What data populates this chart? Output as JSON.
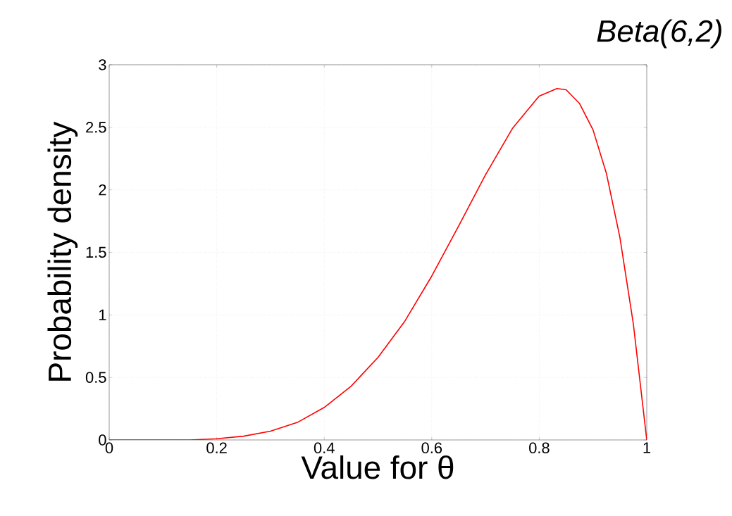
{
  "chart_data": {
    "type": "line",
    "title": "*Beta(6,2)*",
    "xlabel": "Value for θ",
    "ylabel": "Probability density",
    "x": [
      0,
      0.05,
      0.1,
      0.15,
      0.2,
      0.25,
      0.3,
      0.35,
      0.4,
      0.45,
      0.5,
      0.55,
      0.6,
      0.65,
      0.7,
      0.75,
      0.8,
      0.833,
      0.85,
      0.875,
      0.9,
      0.925,
      0.95,
      0.975,
      1
    ],
    "series": [
      {
        "color": "#ff0000",
        "values": [
          0,
          0,
          0,
          0,
          0.01,
          0.03,
          0.07,
          0.14,
          0.26,
          0.43,
          0.66,
          0.95,
          1.31,
          1.71,
          2.12,
          2.49,
          2.75,
          2.81,
          2.8,
          2.69,
          2.48,
          2.13,
          1.62,
          0.93,
          0
        ]
      }
    ],
    "xlim": [
      0,
      1
    ],
    "ylim": [
      0,
      3
    ],
    "xticks": [
      0,
      0.2,
      0.4,
      0.6,
      0.8,
      1
    ],
    "yticks": [
      0,
      0.5,
      1,
      1.5,
      2,
      2.5,
      3
    ],
    "grid": true,
    "marker": "none",
    "line_style": "solid"
  }
}
